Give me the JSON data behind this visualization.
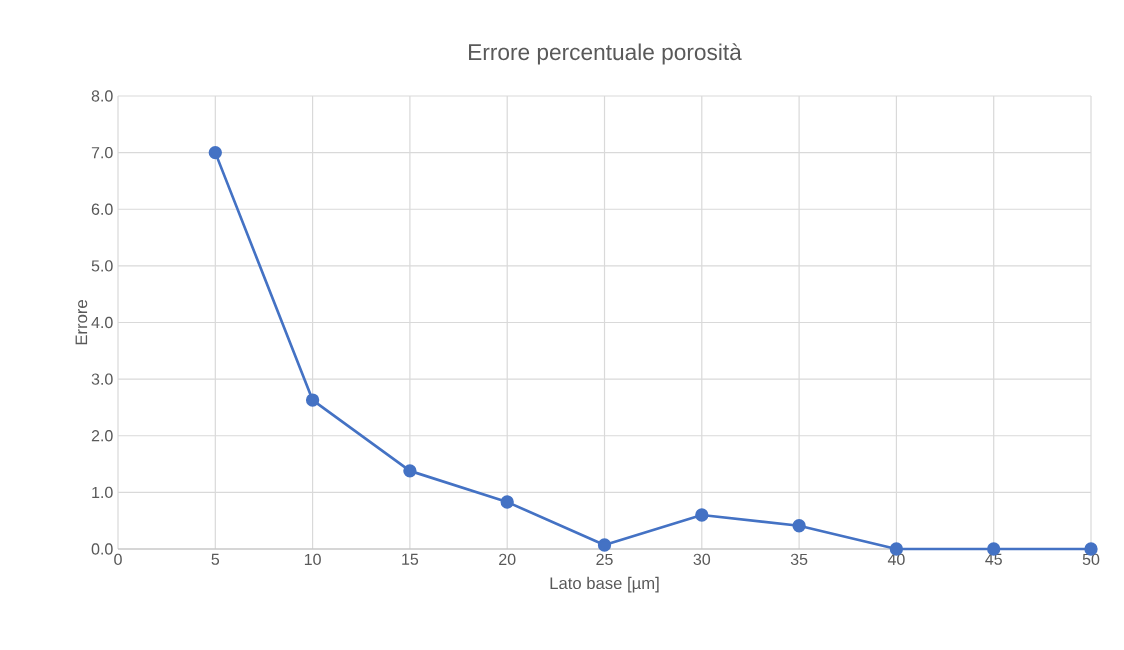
{
  "chart_data": {
    "type": "line",
    "title": "Errore percentuale porosità",
    "xlabel": "Lato base [µm]",
    "ylabel": "Errore",
    "x": [
      5,
      10,
      15,
      20,
      25,
      30,
      35,
      40,
      45,
      50
    ],
    "series": [
      {
        "color": "#4472c4",
        "values": [
          7.0,
          2.63,
          1.38,
          0.83,
          0.07,
          0.6,
          0.41,
          0.0,
          0.0,
          0.0
        ]
      }
    ],
    "xlim": [
      0,
      50
    ],
    "xticks": [
      0,
      5,
      10,
      15,
      20,
      25,
      30,
      35,
      40,
      45,
      50
    ],
    "ylim": [
      0,
      8
    ],
    "yticks": [
      {
        "value": 0,
        "label": "0.0"
      },
      {
        "value": 1,
        "label": "1.0"
      },
      {
        "value": 2,
        "label": "2.0"
      },
      {
        "value": 3,
        "label": "3.0"
      },
      {
        "value": 4,
        "label": "4.0"
      },
      {
        "value": 5,
        "label": "5.0"
      },
      {
        "value": 6,
        "label": "6.0"
      },
      {
        "value": 7,
        "label": "7.0"
      },
      {
        "value": 8,
        "label": "8.0"
      }
    ],
    "grid": true,
    "marker": "circle",
    "line_style": "solid",
    "legend": false
  }
}
